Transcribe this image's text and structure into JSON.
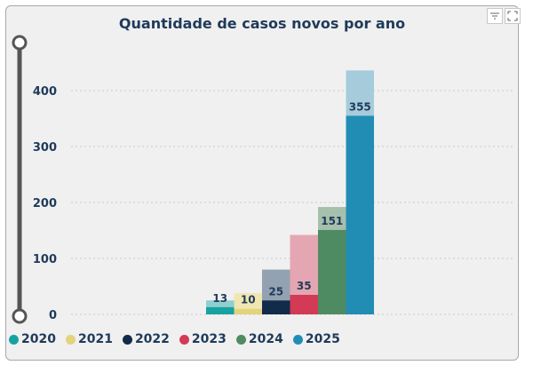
{
  "toolbar": {
    "filter_icon": "filter-icon",
    "focus_icon": "focus-mode-icon"
  },
  "slider": {
    "icon": "range-slider"
  },
  "chart_data": {
    "type": "bar",
    "title": "Quantidade de casos novos por ano",
    "xlabel": "",
    "ylabel": "",
    "ylim": [
      0,
      440
    ],
    "yticks": [
      0,
      100,
      200,
      300,
      400
    ],
    "grid": true,
    "legend_position": "bottom-left",
    "categories": [
      "2020",
      "2021",
      "2022",
      "2023",
      "2024",
      "2025"
    ],
    "series": [
      {
        "name": "2020",
        "value": 13,
        "total": 25,
        "label": "13",
        "color": "#17a2a2",
        "light": "#8fcfcf"
      },
      {
        "name": "2021",
        "value": 10,
        "total": 38,
        "label": "10",
        "color": "#e3d37b",
        "light": "#efe6b2"
      },
      {
        "name": "2022",
        "value": 25,
        "total": 80,
        "label": "25",
        "color": "#112b4a",
        "light": "#93a2b0"
      },
      {
        "name": "2023",
        "value": 35,
        "total": 142,
        "label": "35",
        "color": "#d23a55",
        "light": "#e4a6b2"
      },
      {
        "name": "2024",
        "value": 151,
        "total": 192,
        "label": "151",
        "color": "#4f8b62",
        "light": "#a7c0ad"
      },
      {
        "name": "2025",
        "value": 355,
        "total": 436,
        "label": "355",
        "color": "#218db5",
        "light": "#a6ccdc"
      }
    ]
  }
}
